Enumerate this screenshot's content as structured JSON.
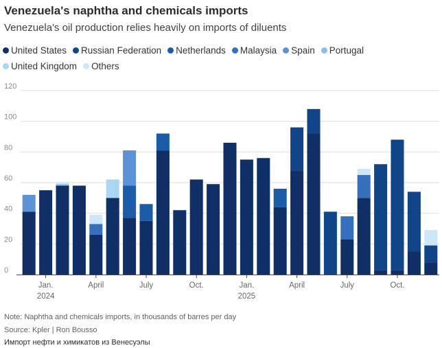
{
  "header": {
    "title": "Venezuela's naphtha and chemicals imports",
    "subtitle": "Venezuela's oil production relies heavily on imports of diluents"
  },
  "footer": {
    "note": "Note: Naphtha and chemicals imports, in thousands of barres per day",
    "source": "Source: Kpler | Ron Bousso",
    "caption": "Импорт нефти и химикатов из Венесуэлы"
  },
  "chart_data": {
    "type": "bar",
    "stacked": true,
    "title": "Venezuela's naphtha and chemicals imports",
    "subtitle": "Venezuela's oil production relies heavily on imports of diluents",
    "ylabel": "",
    "xlabel": "",
    "ylim": [
      0,
      120
    ],
    "yticks": [
      0,
      20,
      40,
      60,
      80,
      100,
      120
    ],
    "grid": true,
    "legend_position": "top",
    "series_colors": [
      "#0f2f66",
      "#11458a",
      "#1b5ca8",
      "#3570bd",
      "#5d93d6",
      "#8fbdea",
      "#a9d6f2",
      "#cbe7f9"
    ],
    "x_tick_labels": [
      {
        "index": 1,
        "label": "Jan.",
        "sub": "2024"
      },
      {
        "index": 4,
        "label": "April",
        "sub": ""
      },
      {
        "index": 7,
        "label": "July",
        "sub": ""
      },
      {
        "index": 10,
        "label": "Oct.",
        "sub": ""
      },
      {
        "index": 13,
        "label": "Jan.",
        "sub": "2025"
      },
      {
        "index": 16,
        "label": "April",
        "sub": ""
      },
      {
        "index": 19,
        "label": "July",
        "sub": ""
      },
      {
        "index": 22,
        "label": "Oct.",
        "sub": ""
      }
    ],
    "categories": [
      "Dec 2023",
      "Jan 2024",
      "Feb 2024",
      "Mar 2024",
      "Apr 2024",
      "May 2024",
      "Jun 2024",
      "Jul 2024",
      "Aug 2024",
      "Sep 2024",
      "Oct 2024",
      "Nov 2024",
      "Dec 2024",
      "Jan 2025",
      "Feb 2025",
      "Mar 2025",
      "Apr 2025",
      "May 2025",
      "Jun 2025",
      "Jul 2025",
      "Aug 2025",
      "Sep 2025",
      "Oct 2025",
      "Nov 2025",
      "Dec 2025"
    ],
    "series": [
      {
        "name": "United States",
        "values": [
          41,
          55,
          58,
          58,
          26,
          50,
          37,
          35,
          81,
          42,
          62,
          59,
          86,
          75,
          76,
          44,
          68,
          92,
          0,
          23,
          50,
          3,
          3,
          15,
          8
        ]
      },
      {
        "name": "Russian Federation",
        "values": [
          0,
          0,
          0,
          0,
          0,
          0,
          0,
          0,
          0,
          0,
          0,
          0,
          0,
          0,
          0,
          0,
          28,
          16,
          41,
          0,
          0,
          69,
          85,
          39,
          11
        ]
      },
      {
        "name": "Netherlands",
        "values": [
          0,
          0,
          0,
          0,
          0,
          0,
          21,
          11,
          11,
          0,
          0,
          0,
          0,
          0,
          0,
          12,
          0,
          0,
          0,
          0,
          0,
          0,
          0,
          0,
          0
        ]
      },
      {
        "name": "Malaysia",
        "values": [
          0,
          0,
          0,
          0,
          7,
          0,
          0,
          0,
          0,
          0,
          0,
          0,
          0,
          0,
          0,
          0,
          0,
          0,
          0,
          15,
          15,
          0,
          0,
          0,
          0
        ]
      },
      {
        "name": "Spain",
        "values": [
          11,
          0,
          0,
          0,
          0,
          0,
          23,
          0,
          0,
          0,
          0,
          0,
          0,
          0,
          0,
          0,
          0,
          0,
          0,
          0,
          0,
          0,
          0,
          0,
          0
        ]
      },
      {
        "name": "Portugal",
        "values": [
          0,
          0,
          1,
          0,
          0,
          0,
          0,
          0,
          0,
          0,
          0,
          0,
          0,
          0,
          0,
          0,
          0,
          0,
          0,
          0,
          0,
          0,
          0,
          0,
          0
        ]
      },
      {
        "name": "United Kingdom",
        "values": [
          0,
          0,
          0,
          0,
          0,
          12,
          0,
          0,
          0,
          0,
          0,
          0,
          0,
          0,
          0,
          0,
          0,
          0,
          0,
          0,
          0,
          0,
          0,
          0,
          0
        ]
      },
      {
        "name": "Others",
        "values": [
          0,
          0,
          1,
          0,
          6,
          0,
          0,
          0,
          0,
          0,
          0,
          0,
          0,
          0,
          0,
          0,
          0,
          0,
          0,
          0,
          4,
          0,
          0,
          0,
          10
        ]
      }
    ]
  }
}
